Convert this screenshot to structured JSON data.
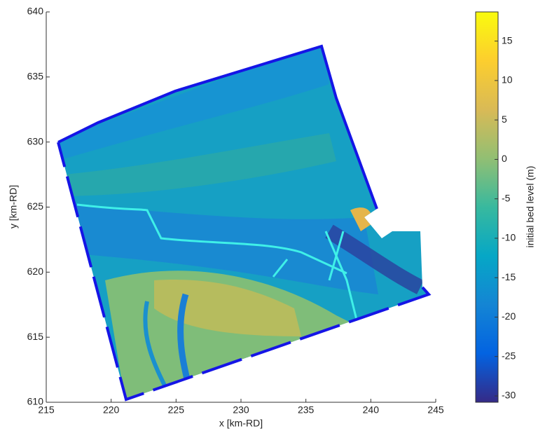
{
  "chart_data": {
    "type": "heatmap",
    "xlabel": "x [km-RD]",
    "ylabel": "y [km-RD]",
    "xlim": [
      215,
      245
    ],
    "xticks": [
      215,
      220,
      225,
      230,
      235,
      240,
      245
    ],
    "ylim": [
      610,
      640
    ],
    "yticks": [
      610,
      615,
      620,
      625,
      630,
      635,
      640
    ],
    "colorbar": {
      "label": "initial bed level (m)",
      "clim": [
        -30.8,
        18.7
      ],
      "ticks": [
        -30,
        -25,
        -20,
        -15,
        -10,
        -5,
        0,
        5,
        10,
        15
      ],
      "colormap": [
        "#352a87",
        "#0363e1",
        "#1485d4",
        "#06a7c6",
        "#38b99e",
        "#92bf73",
        "#d9ba56",
        "#fcce2e",
        "#f9fb0e"
      ]
    }
  }
}
